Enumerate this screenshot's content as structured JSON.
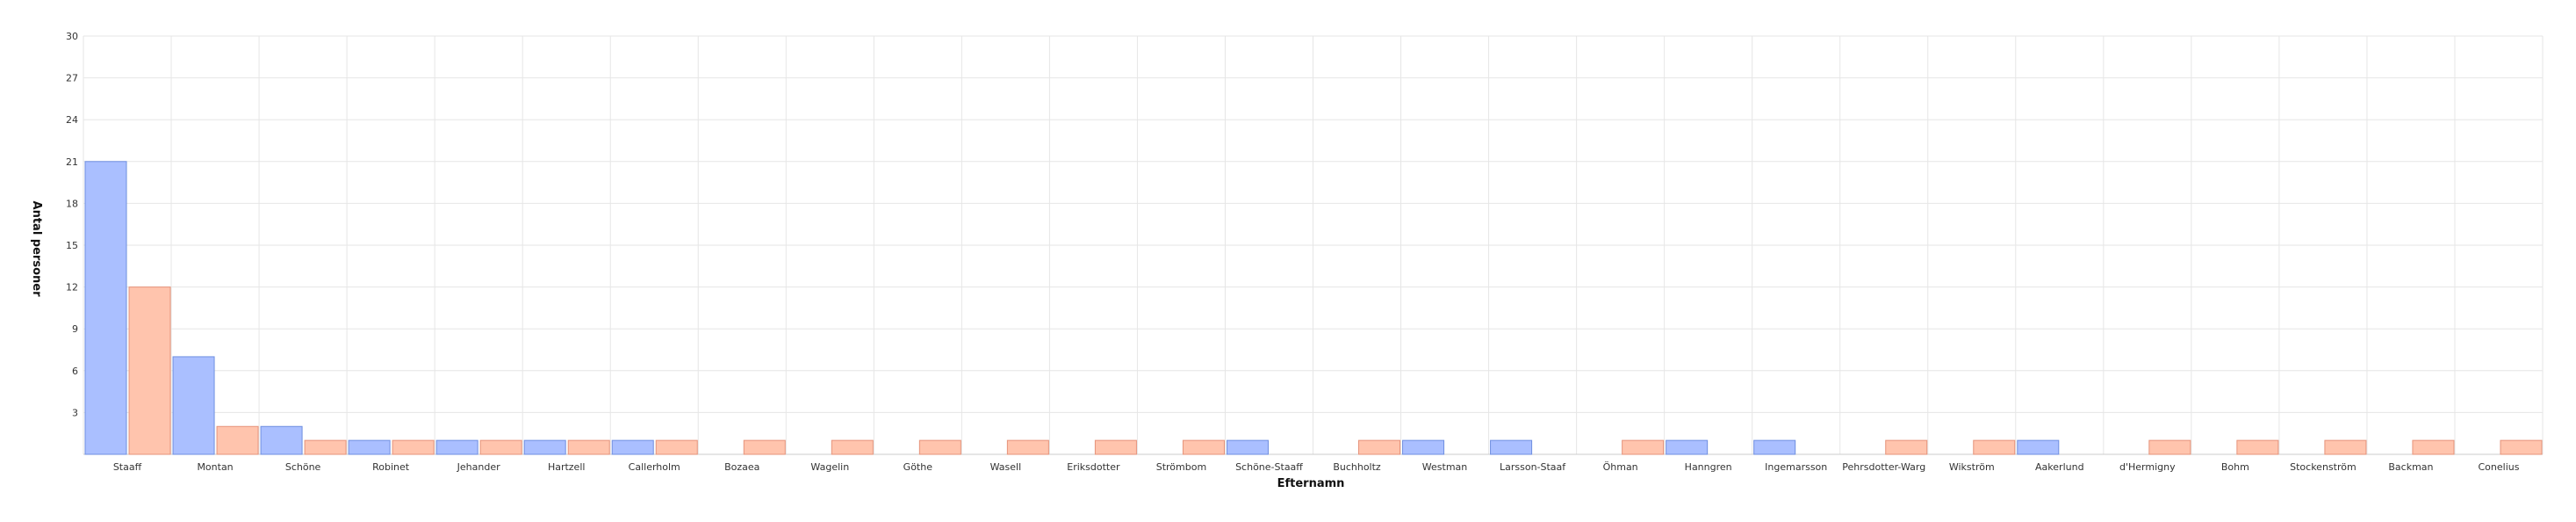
{
  "chart_data": {
    "type": "bar",
    "title": "",
    "xlabel": "Efternamn",
    "ylabel": "Antal personer",
    "ylim": [
      0,
      30
    ],
    "yticks": [
      3,
      6,
      9,
      12,
      15,
      18,
      21,
      24,
      27,
      30
    ],
    "grid": true,
    "legend": "none",
    "categories": [
      "Staaff",
      "Montan",
      "Schöne",
      "Robinet",
      "Jehander",
      "Hartzell",
      "Callerholm",
      "Bozaea",
      "Wagelin",
      "Göthe",
      "Wasell",
      "Eriksdotter",
      "Strömbom",
      "Schöne-Staaff",
      "Buchholtz",
      "Westman",
      "Larsson-Staaf",
      "Öhman",
      "Hanngren",
      "Ingemarsson",
      "Pehrsdotter-Warg",
      "Wikström",
      "Aakerlund",
      "d'Hermigny",
      "Bohm",
      "Stockenström",
      "Backman",
      "Conelius"
    ],
    "series": [
      {
        "color": "#aabfff",
        "edge": "#6f8fe0",
        "values": [
          21,
          7,
          2,
          1,
          1,
          1,
          1,
          0,
          0,
          0,
          0,
          0,
          0,
          1,
          0,
          1,
          1,
          0,
          1,
          1,
          0,
          0,
          1,
          0,
          0,
          0,
          0,
          0
        ]
      },
      {
        "color": "#ffc4ad",
        "edge": "#e6937a",
        "values": [
          12,
          2,
          1,
          1,
          1,
          1,
          1,
          1,
          1,
          1,
          1,
          1,
          1,
          0,
          1,
          0,
          0,
          1,
          0,
          0,
          1,
          1,
          0,
          1,
          1,
          1,
          1,
          1
        ]
      }
    ]
  }
}
